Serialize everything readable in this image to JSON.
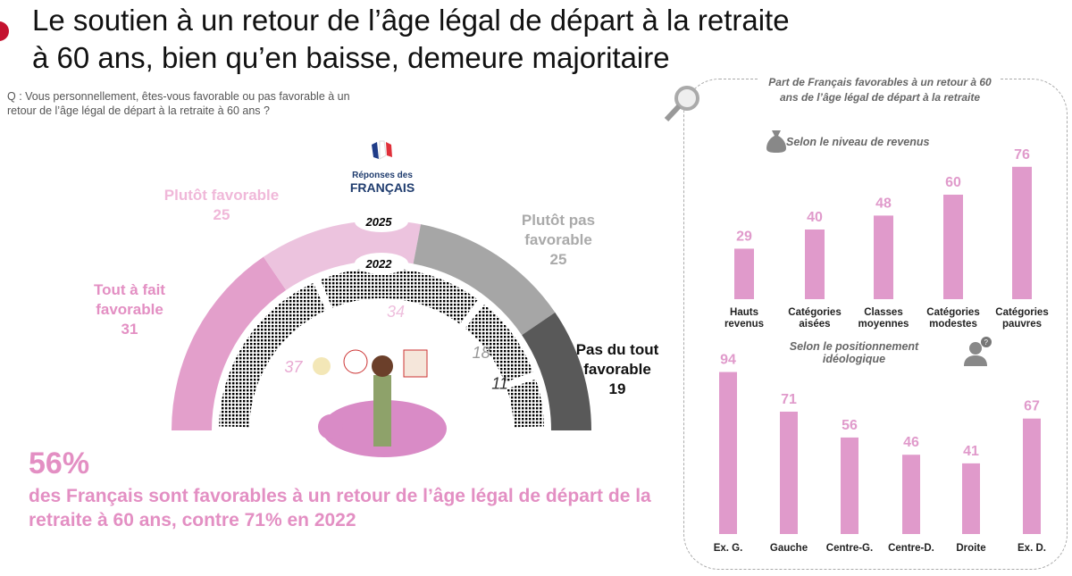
{
  "title": "Le soutien à un retour de l’âge légal de départ à la retraite",
  "title2": "à 60 ans, bien qu’en baisse, demeure majoritaire",
  "question": "Q : Vous personnellement, êtes-vous favorable ou pas favorable à un retour de l’âge légal de départ à la retraite à 60 ans ?",
  "respondents": {
    "line1": "Réponses des",
    "line2": "FRANÇAIS"
  },
  "headline": {
    "value": "56%",
    "text": "des Français sont favorables à un retour de l’âge légal de départ de la retraite à 60 ans, contre 71% en 2022"
  },
  "chart_data": [
    {
      "type": "pie",
      "subtype": "half-donut",
      "title": "Réponses des FRANÇAIS",
      "categories": [
        "Tout à fait favorable",
        "Plutôt favorable",
        "Plutôt pas favorable",
        "Pas du tout favorable"
      ],
      "series": [
        {
          "name": "2025",
          "values": [
            31,
            25,
            25,
            19
          ]
        },
        {
          "name": "2022",
          "values": [
            37,
            34,
            18,
            11
          ]
        }
      ],
      "colors_2025": [
        "#e39fcb",
        "#ecc3de",
        "#a6a6a6",
        "#595959"
      ],
      "colors_2022": [
        "#e8a9d2",
        "#eebfdd",
        "#9a9a9a",
        "#3f3f3f"
      ]
    },
    {
      "type": "bar",
      "title": "Part de Français favorables à un retour à 60 ans de l’âge légal de départ à la retraite",
      "subtitle": "Selon le niveau de revenus",
      "categories": [
        "Hauts revenus",
        "Catégories aisées",
        "Classes moyennes",
        "Catégories modestes",
        "Catégories pauvres"
      ],
      "values": [
        29,
        40,
        48,
        60,
        76
      ],
      "ylim": [
        0,
        80
      ],
      "color": "#e09acb"
    },
    {
      "type": "bar",
      "subtitle": "Selon le positionnement idéologique",
      "categories": [
        "Ex. G.",
        "Gauche",
        "Centre-G.",
        "Centre-D.",
        "Droite",
        "Ex. D."
      ],
      "values": [
        94,
        71,
        56,
        46,
        41,
        67
      ],
      "ylim": [
        0,
        100
      ],
      "color": "#e09acb"
    }
  ]
}
